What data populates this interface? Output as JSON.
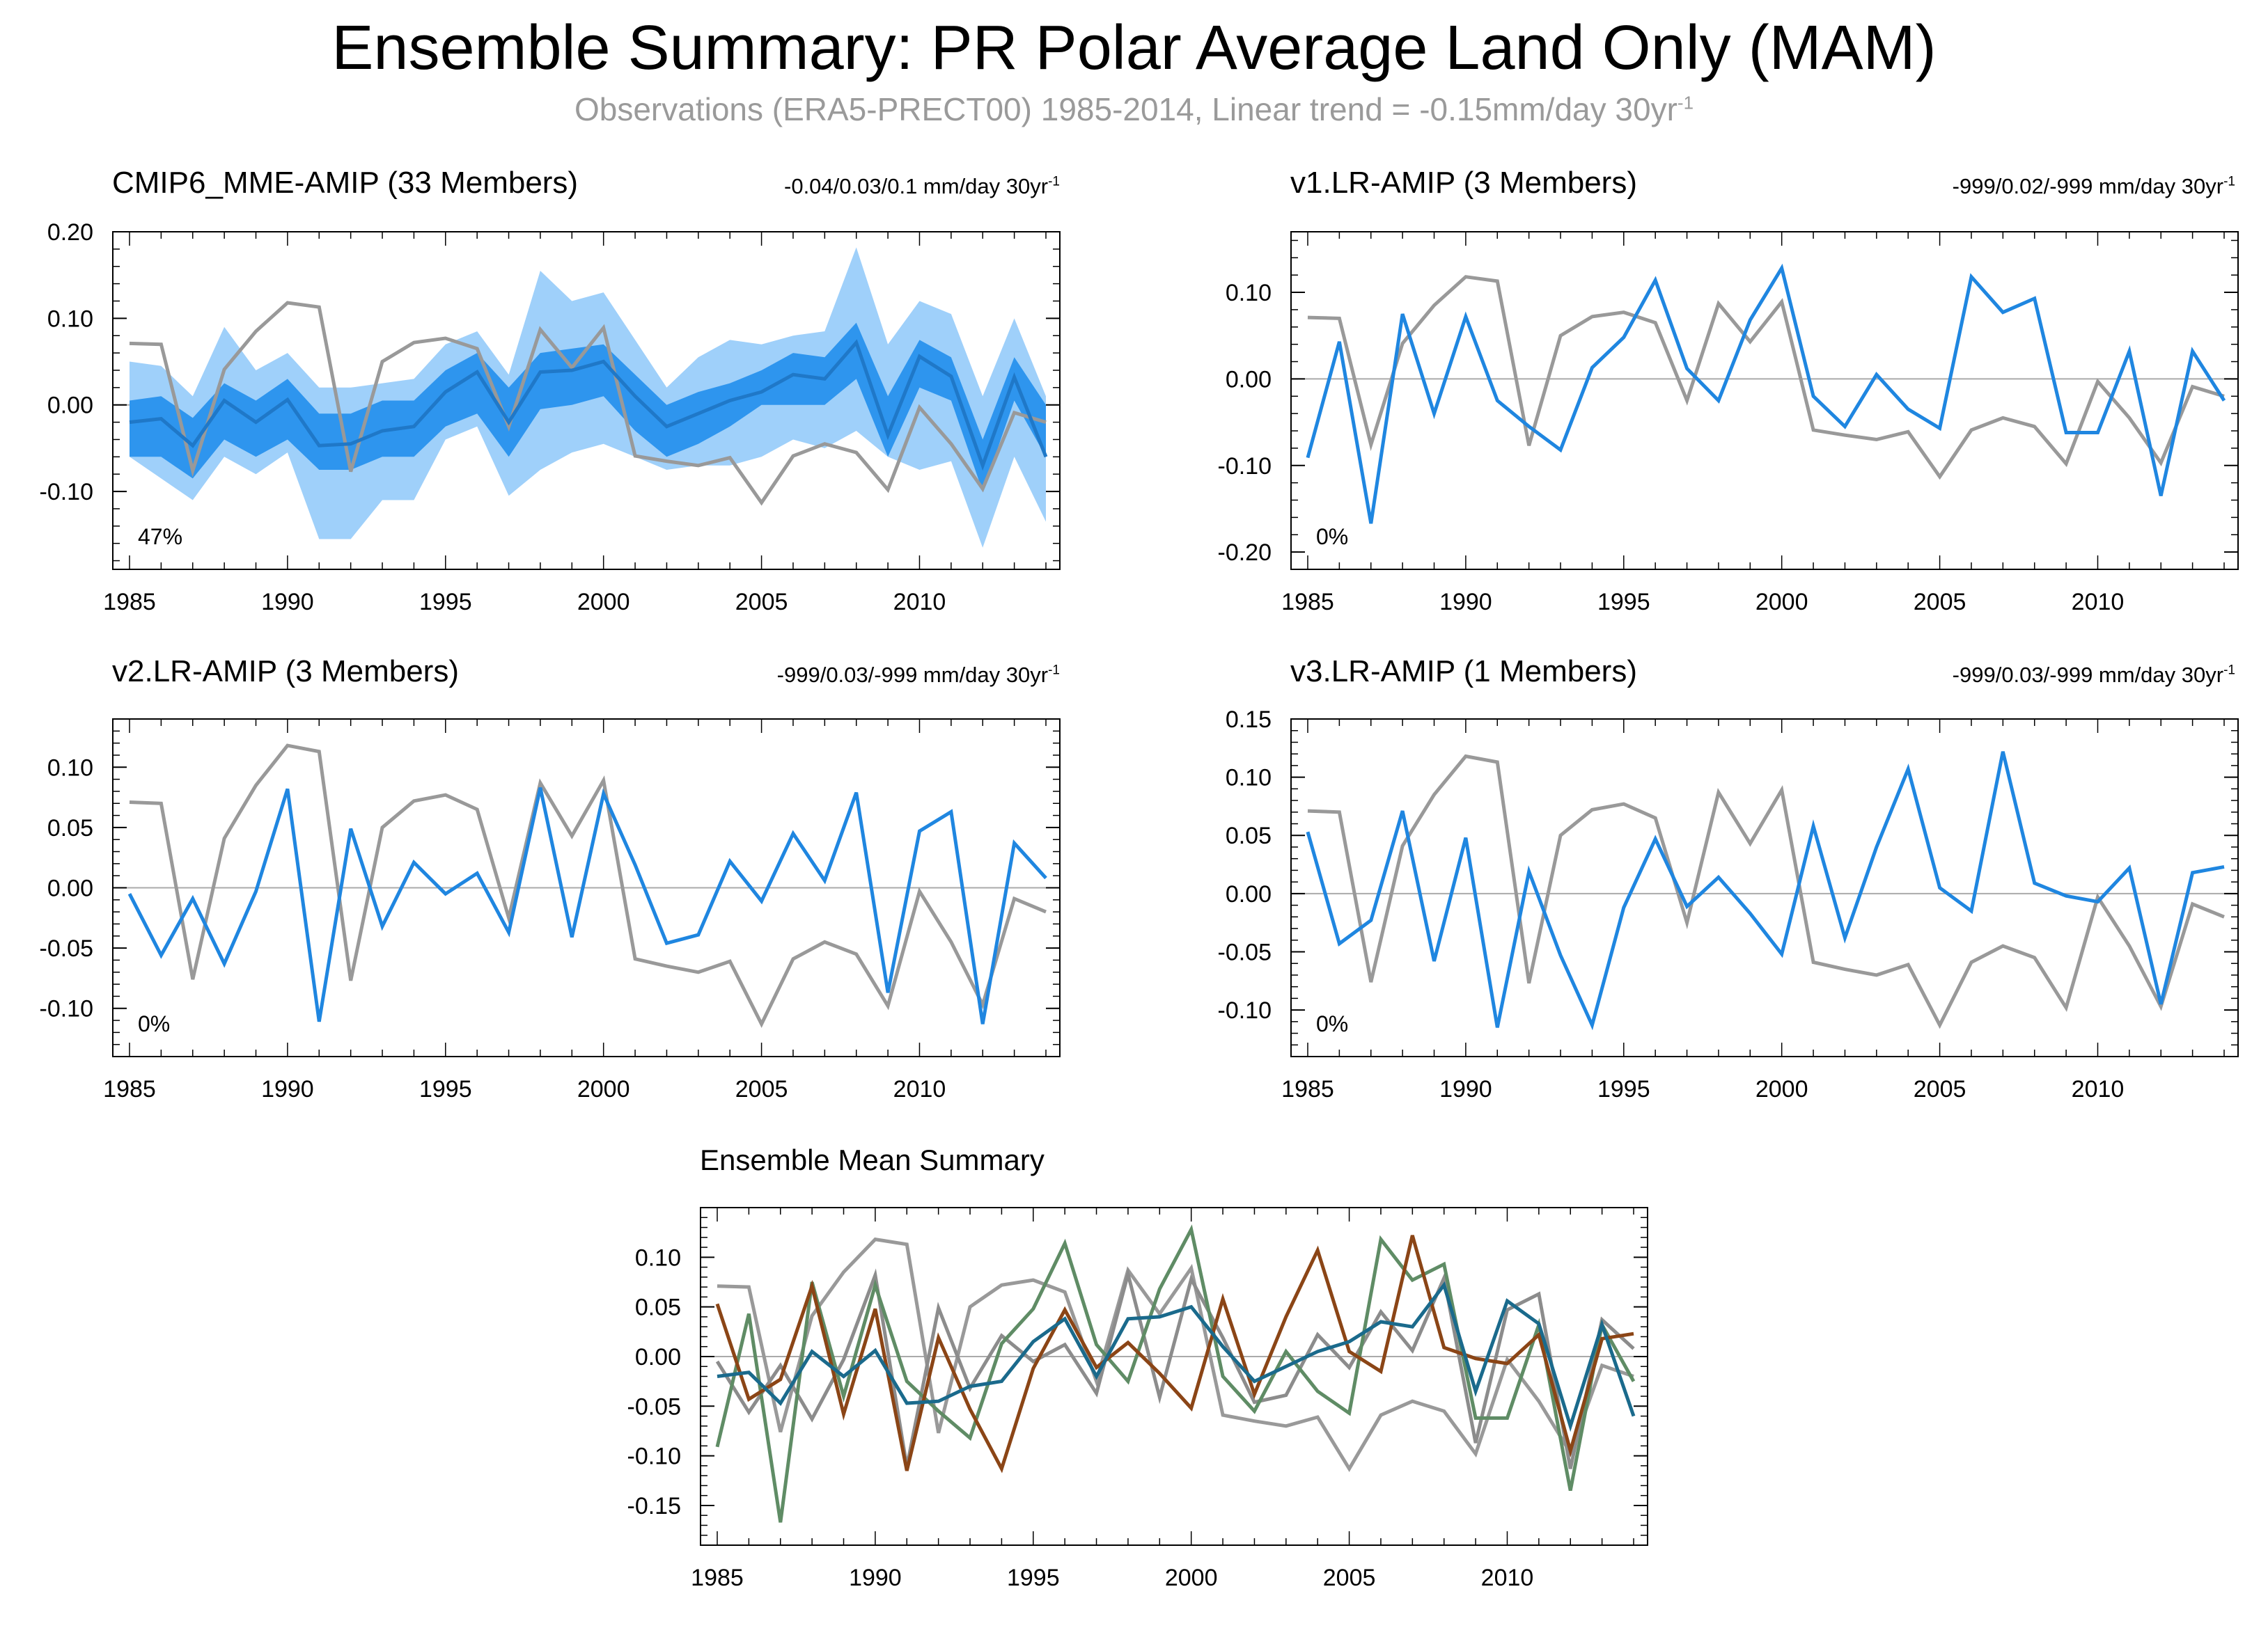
{
  "title": "Ensemble Summary: PR Polar Average Land Only (MAM)",
  "subtitle": "Observations (ERA5-PRECT00) 1985-2014, Linear trend = -0.15mm/day 30yr",
  "subtitle_sup": "-1",
  "colors": {
    "obs": "#999999",
    "model": "#1f86e0",
    "band_inner": "#2e95ee",
    "band_outer": "#9fd0fa",
    "cmip6": "#1a6a8c",
    "v1": "#5f8c65",
    "v2": "#8c8c8c",
    "v3": "#8b4516"
  },
  "chart_data": [
    {
      "id": "cmip6",
      "type": "line",
      "title": "CMIP6_MME-AMIP (33 Members)",
      "title_color": "#1a6a8c",
      "trend_text": "-0.04/0.03/0.1 mm/day 30yr",
      "trend_sup": "-1",
      "percent_label": "47%",
      "ylim": [
        -0.19,
        0.2
      ],
      "yticks": [
        -0.1,
        0.0,
        0.1,
        0.2
      ],
      "ytick_labels": [
        "-0.10",
        "0.00",
        "0.10",
        "0.20"
      ],
      "x": [
        1985,
        1986,
        1987,
        1988,
        1989,
        1990,
        1991,
        1992,
        1993,
        1994,
        1995,
        1996,
        1997,
        1998,
        1999,
        2000,
        2001,
        2002,
        2003,
        2004,
        2005,
        2006,
        2007,
        2008,
        2009,
        2010,
        2011,
        2012,
        2013,
        2014
      ],
      "xticks": [
        1985,
        1990,
        1995,
        2000,
        2005,
        2010
      ],
      "observations": [
        0.071,
        0.07,
        -0.076,
        0.041,
        0.085,
        0.118,
        0.113,
        -0.077,
        0.05,
        0.072,
        0.077,
        0.065,
        -0.025,
        0.087,
        0.043,
        0.089,
        -0.059,
        -0.065,
        -0.07,
        -0.061,
        -0.113,
        -0.059,
        -0.045,
        -0.055,
        -0.098,
        -0.003,
        -0.045,
        -0.097,
        -0.009,
        -0.02
      ],
      "mean": [
        -0.02,
        -0.016,
        -0.047,
        0.005,
        -0.02,
        0.006,
        -0.047,
        -0.045,
        -0.03,
        -0.025,
        0.015,
        0.038,
        -0.02,
        0.038,
        0.04,
        0.05,
        0.01,
        -0.025,
        -0.01,
        0.005,
        0.015,
        0.035,
        0.03,
        0.072,
        -0.035,
        0.056,
        0.033,
        -0.07,
        0.032,
        -0.06
      ],
      "band_inner_upper": [
        0.005,
        0.01,
        -0.015,
        0.025,
        0.005,
        0.03,
        -0.01,
        -0.01,
        0.005,
        0.005,
        0.04,
        0.06,
        0.02,
        0.06,
        0.065,
        0.07,
        0.035,
        0.0,
        0.015,
        0.025,
        0.04,
        0.06,
        0.055,
        0.095,
        0.01,
        0.075,
        0.055,
        -0.04,
        0.055,
        0.0
      ],
      "band_inner_lower": [
        -0.06,
        -0.06,
        -0.085,
        -0.04,
        -0.06,
        -0.04,
        -0.075,
        -0.075,
        -0.06,
        -0.06,
        -0.025,
        -0.01,
        -0.06,
        -0.005,
        0.0,
        0.01,
        -0.03,
        -0.06,
        -0.045,
        -0.025,
        0.0,
        0.0,
        0.0,
        0.03,
        -0.06,
        0.02,
        0.005,
        -0.1,
        0.005,
        -0.06
      ],
      "band_outer_upper": [
        0.05,
        0.045,
        0.01,
        0.09,
        0.04,
        0.06,
        0.02,
        0.02,
        0.025,
        0.03,
        0.07,
        0.085,
        0.035,
        0.155,
        0.12,
        0.13,
        0.075,
        0.02,
        0.055,
        0.075,
        0.07,
        0.08,
        0.085,
        0.182,
        0.07,
        0.12,
        0.105,
        0.01,
        0.1,
        0.01
      ],
      "band_outer_lower": [
        -0.06,
        -0.085,
        -0.11,
        -0.06,
        -0.08,
        -0.055,
        -0.155,
        -0.155,
        -0.11,
        -0.11,
        -0.04,
        -0.025,
        -0.105,
        -0.075,
        -0.055,
        -0.045,
        -0.06,
        -0.075,
        -0.07,
        -0.07,
        -0.06,
        -0.04,
        -0.05,
        -0.03,
        -0.06,
        -0.075,
        -0.065,
        -0.165,
        -0.06,
        -0.135
      ]
    },
    {
      "id": "v1",
      "type": "line",
      "title": "v1.LR-AMIP (3 Members)",
      "title_color": "#5f8c65",
      "trend_text": "-999/0.02/-999 mm/day 30yr",
      "trend_sup": "-1",
      "percent_label": "0%",
      "ylim": [
        -0.22,
        0.17
      ],
      "yticks": [
        -0.2,
        -0.1,
        0.0,
        0.1
      ],
      "ytick_labels": [
        "-0.20",
        "-0.10",
        "0.00",
        "0.10"
      ],
      "x": [
        1985,
        1986,
        1987,
        1988,
        1989,
        1990,
        1991,
        1992,
        1993,
        1994,
        1995,
        1996,
        1997,
        1998,
        1999,
        2000,
        2001,
        2002,
        2003,
        2004,
        2005,
        2006,
        2007,
        2008,
        2009,
        2010,
        2011,
        2012,
        2013,
        2014
      ],
      "xticks": [
        1985,
        1990,
        1995,
        2000,
        2005,
        2010
      ],
      "observations": [
        0.071,
        0.07,
        -0.076,
        0.041,
        0.085,
        0.118,
        0.113,
        -0.077,
        0.05,
        0.072,
        0.077,
        0.065,
        -0.025,
        0.087,
        0.043,
        0.089,
        -0.059,
        -0.065,
        -0.07,
        -0.061,
        -0.113,
        -0.059,
        -0.045,
        -0.055,
        -0.098,
        -0.003,
        -0.045,
        -0.097,
        -0.009,
        -0.02
      ],
      "model": [
        -0.091,
        0.043,
        -0.167,
        0.075,
        -0.04,
        0.072,
        -0.025,
        -0.055,
        -0.082,
        0.013,
        0.048,
        0.114,
        0.012,
        -0.025,
        0.068,
        0.128,
        -0.02,
        -0.055,
        0.005,
        -0.035,
        -0.057,
        0.118,
        0.077,
        0.093,
        -0.062,
        -0.062,
        0.032,
        -0.135,
        0.032,
        -0.025
      ]
    },
    {
      "id": "v2",
      "type": "line",
      "title": "v2.LR-AMIP (3 Members)",
      "title_color": "#8c8c8c",
      "trend_text": "-999/0.03/-999 mm/day 30yr",
      "trend_sup": "-1",
      "percent_label": "0%",
      "ylim": [
        -0.14,
        0.14
      ],
      "yticks": [
        -0.1,
        -0.05,
        0.0,
        0.05,
        0.1
      ],
      "ytick_labels": [
        "-0.10",
        "-0.05",
        "0.00",
        "0.05",
        "0.10"
      ],
      "x": [
        1985,
        1986,
        1987,
        1988,
        1989,
        1990,
        1991,
        1992,
        1993,
        1994,
        1995,
        1996,
        1997,
        1998,
        1999,
        2000,
        2001,
        2002,
        2003,
        2004,
        2005,
        2006,
        2007,
        2008,
        2009,
        2010,
        2011,
        2012,
        2013,
        2014
      ],
      "xticks": [
        1985,
        1990,
        1995,
        2000,
        2005,
        2010
      ],
      "observations": [
        0.071,
        0.07,
        -0.076,
        0.041,
        0.085,
        0.118,
        0.113,
        -0.077,
        0.05,
        0.072,
        0.077,
        0.065,
        -0.025,
        0.087,
        0.043,
        0.089,
        -0.059,
        -0.065,
        -0.07,
        -0.061,
        -0.113,
        -0.059,
        -0.045,
        -0.055,
        -0.098,
        -0.003,
        -0.045,
        -0.097,
        -0.009,
        -0.02
      ],
      "model": [
        -0.005,
        -0.056,
        -0.009,
        -0.063,
        -0.003,
        0.082,
        -0.111,
        0.049,
        -0.032,
        0.021,
        -0.005,
        0.012,
        -0.037,
        0.083,
        -0.041,
        0.078,
        0.019,
        -0.046,
        -0.039,
        0.022,
        -0.011,
        0.045,
        0.006,
        0.079,
        -0.087,
        0.047,
        0.063,
        -0.113,
        0.037,
        0.008
      ]
    },
    {
      "id": "v3",
      "type": "line",
      "title": "v3.LR-AMIP (1 Members)",
      "title_color": "#8b4516",
      "trend_text": "-999/0.03/-999 mm/day 30yr",
      "trend_sup": "-1",
      "percent_label": "0%",
      "ylim": [
        -0.14,
        0.15
      ],
      "yticks": [
        -0.1,
        -0.05,
        0.0,
        0.05,
        0.1,
        0.15
      ],
      "ytick_labels": [
        "-0.10",
        "-0.05",
        "0.00",
        "0.05",
        "0.10",
        "0.15"
      ],
      "x": [
        1985,
        1986,
        1987,
        1988,
        1989,
        1990,
        1991,
        1992,
        1993,
        1994,
        1995,
        1996,
        1997,
        1998,
        1999,
        2000,
        2001,
        2002,
        2003,
        2004,
        2005,
        2006,
        2007,
        2008,
        2009,
        2010,
        2011,
        2012,
        2013,
        2014
      ],
      "xticks": [
        1985,
        1990,
        1995,
        2000,
        2005,
        2010
      ],
      "observations": [
        0.071,
        0.07,
        -0.076,
        0.041,
        0.085,
        0.118,
        0.113,
        -0.077,
        0.05,
        0.072,
        0.077,
        0.065,
        -0.025,
        0.087,
        0.043,
        0.089,
        -0.059,
        -0.065,
        -0.07,
        -0.061,
        -0.113,
        -0.059,
        -0.045,
        -0.055,
        -0.098,
        -0.003,
        -0.045,
        -0.097,
        -0.009,
        -0.02
      ],
      "model": [
        0.053,
        -0.043,
        -0.023,
        0.071,
        -0.058,
        0.048,
        -0.115,
        0.019,
        -0.053,
        -0.113,
        -0.012,
        0.047,
        -0.011,
        0.014,
        -0.017,
        -0.052,
        0.058,
        -0.038,
        0.04,
        0.107,
        0.005,
        -0.015,
        0.122,
        0.009,
        -0.002,
        -0.007,
        0.022,
        -0.095,
        0.018,
        0.023
      ]
    },
    {
      "id": "ensemble_mean",
      "type": "line",
      "title": "Ensemble Mean Summary",
      "title_color": "#000000",
      "ylim": [
        -0.19,
        0.15
      ],
      "yticks": [
        -0.15,
        -0.1,
        -0.05,
        0.0,
        0.05,
        0.1
      ],
      "ytick_labels": [
        "-0.15",
        "-0.10",
        "-0.05",
        "0.00",
        "0.05",
        "0.10"
      ],
      "x": [
        1985,
        1986,
        1987,
        1988,
        1989,
        1990,
        1991,
        1992,
        1993,
        1994,
        1995,
        1996,
        1997,
        1998,
        1999,
        2000,
        2001,
        2002,
        2003,
        2004,
        2005,
        2006,
        2007,
        2008,
        2009,
        2010,
        2011,
        2012,
        2013,
        2014
      ],
      "xticks": [
        1985,
        1990,
        1995,
        2000,
        2005,
        2010
      ],
      "series": [
        {
          "name": "Observations",
          "color_key": "obs",
          "source": "cmip6.observations"
        },
        {
          "name": "v2.LR-AMIP",
          "color_key": "v2",
          "source": "v2.model"
        },
        {
          "name": "v1.LR-AMIP",
          "color_key": "v1",
          "source": "v1.model"
        },
        {
          "name": "v3.LR-AMIP",
          "color_key": "v3",
          "source": "v3.model"
        },
        {
          "name": "CMIP6_MME-AMIP",
          "color_key": "cmip6",
          "source": "cmip6.mean"
        }
      ]
    }
  ]
}
